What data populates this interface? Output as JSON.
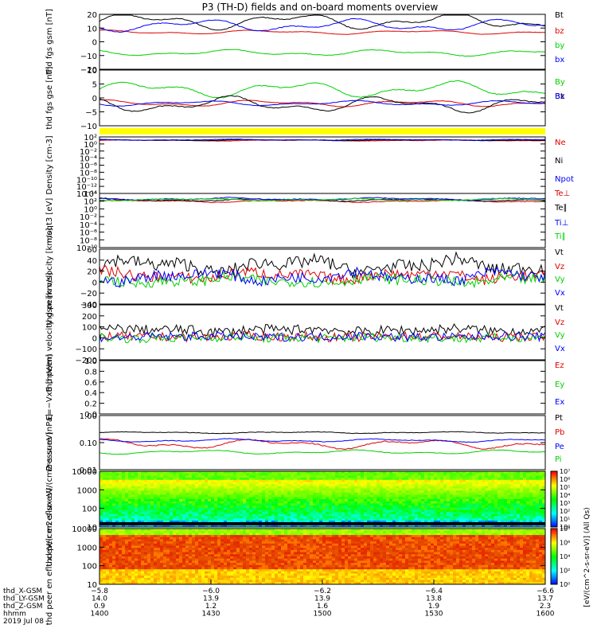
{
  "title": "P3 (TH-D) fields and on-board moments overview",
  "colors": {
    "black": "#000000",
    "red": "#e00000",
    "green": "#00d000",
    "blue": "#0000ff",
    "yellow": "#ffff00"
  },
  "chart_data": [
    {
      "id": "fgs-gsm",
      "type": "line",
      "ylabel": "thd fgs gsm [nT]",
      "ylim": [
        -20,
        20
      ],
      "yticks": [
        "20",
        "10",
        "0",
        "−10",
        "−20"
      ],
      "series": [
        {
          "name": "Bt",
          "color": "#000000",
          "level": 15,
          "amp": 4,
          "noise": 0.3
        },
        {
          "name": "bz",
          "color": "#e00000",
          "level": 7,
          "amp": 1,
          "noise": 0.1
        },
        {
          "name": "by",
          "color": "#00d000",
          "level": -8,
          "amp": 1.5,
          "noise": 0.2
        },
        {
          "name": "bx",
          "color": "#0000ff",
          "level": 12,
          "amp": 3,
          "noise": 0.3
        }
      ]
    },
    {
      "id": "fgs-gse",
      "type": "line",
      "ylabel": "thd fgs gse [nT]",
      "ylim": [
        -13,
        13
      ],
      "yticks": [
        "10",
        "5",
        "0",
        "−5",
        "−10"
      ],
      "series": [
        {
          "name": "By",
          "color": "#00d000",
          "level": 4,
          "amp": 2.5,
          "noise": 0.2
        },
        {
          "name": "Bz",
          "color": "#e00000",
          "level": -2.5,
          "amp": 1,
          "noise": 0.1
        },
        {
          "name": "Bt",
          "color": "#000000",
          "level": -3,
          "amp": 2.5,
          "noise": 0.2
        },
        {
          "name": "Bx",
          "color": "#0000ff",
          "level": -2.5,
          "amp": 0.8,
          "noise": 0.1
        }
      ]
    },
    {
      "id": "density",
      "type": "line",
      "ylabel": "Density [cm-3]",
      "log": true,
      "ylim": [
        -14,
        2
      ],
      "yticks": [
        "10²",
        "10⁰",
        "10⁻²",
        "10⁻⁴",
        "10⁻⁶",
        "10⁻⁸",
        "10⁻¹⁰",
        "10⁻¹²",
        "10⁻¹⁴"
      ],
      "series": [
        {
          "name": "Ne",
          "color": "#e00000",
          "level": 1.0,
          "amp": 0.1,
          "noise": 0.05
        },
        {
          "name": "Ni",
          "color": "#000000",
          "level": 1.1,
          "amp": 0.1,
          "noise": 0.05
        },
        {
          "name": "Npot",
          "color": "#0000ff",
          "level": 1.2,
          "amp": 0.1,
          "noise": 0.05
        }
      ]
    },
    {
      "id": "temperature",
      "type": "line",
      "ylabel": "moqt3 [eV]",
      "log": true,
      "ylim": [
        -10,
        4
      ],
      "yticks": [
        "10⁴",
        "10²",
        "10⁰",
        "10⁻²",
        "10⁻⁴",
        "10⁻⁶",
        "10⁻⁸",
        "10⁻¹⁰"
      ],
      "series": [
        {
          "name": "Te⊥",
          "color": "#e00000",
          "level": 2.0,
          "amp": 0.2,
          "noise": 0.1
        },
        {
          "name": "Te∥",
          "color": "#000000",
          "level": 2.3,
          "amp": 0.2,
          "noise": 0.1
        },
        {
          "name": "Ti⊥",
          "color": "#0000ff",
          "level": 2.6,
          "amp": 0.2,
          "noise": 0.1
        },
        {
          "name": "Ti∥",
          "color": "#00d000",
          "level": 2.4,
          "amp": 0.2,
          "noise": 0.1
        }
      ]
    },
    {
      "id": "peim-velocity",
      "type": "line",
      "ylabel": "thd peim velocity [km/s]",
      "ylim": [
        -40,
        60
      ],
      "yticks": [
        "60",
        "40",
        "20",
        "0",
        "−20",
        "−40"
      ],
      "series": [
        {
          "name": "Vt",
          "color": "#000000",
          "level": 30,
          "amp": 8,
          "noise": 12
        },
        {
          "name": "Vz",
          "color": "#e00000",
          "level": 12,
          "amp": 5,
          "noise": 10
        },
        {
          "name": "Vy",
          "color": "#00d000",
          "level": 3,
          "amp": 4,
          "noise": 10
        },
        {
          "name": "Vx",
          "color": "#0000ff",
          "level": 10,
          "amp": 6,
          "noise": 10
        }
      ]
    },
    {
      "id": "peem-velocity",
      "type": "line",
      "ylabel": "thd peem velocity gsm [km/s]",
      "ylim": [
        -200,
        300
      ],
      "yticks": [
        "300",
        "200",
        "100",
        "0",
        "−100",
        "−200"
      ],
      "series": [
        {
          "name": "Vt",
          "color": "#000000",
          "level": 70,
          "amp": 10,
          "noise": 45
        },
        {
          "name": "Vz",
          "color": "#e00000",
          "level": 10,
          "amp": 5,
          "noise": 40
        },
        {
          "name": "Vy",
          "color": "#00d000",
          "level": 0,
          "amp": 5,
          "noise": 40
        },
        {
          "name": "Vx",
          "color": "#0000ff",
          "level": 10,
          "amp": 5,
          "noise": 40
        }
      ]
    },
    {
      "id": "efield",
      "type": "line",
      "ylabel": "E=−VxB [mV/m]",
      "ylim": [
        0,
        1
      ],
      "yticks": [
        "1.0",
        "0.8",
        "0.6",
        "0.4",
        "0.2",
        "0.0"
      ],
      "series": [
        {
          "name": "Ez",
          "color": "#e00000"
        },
        {
          "name": "Ey",
          "color": "#00d000"
        },
        {
          "name": "Ex",
          "color": "#0000ff"
        }
      ]
    },
    {
      "id": "pressure",
      "type": "line",
      "ylabel": "Pressure [nPa]",
      "log": true,
      "ylim": [
        -2,
        0
      ],
      "yticks": [
        "1.00",
        "0.10",
        "0.01"
      ],
      "series": [
        {
          "name": "Pt",
          "color": "#000000",
          "level": -0.63,
          "amp": 0.02,
          "noise": 0.01
        },
        {
          "name": "Pb",
          "color": "#e00000",
          "level": -1.05,
          "amp": 0.12,
          "noise": 0.02
        },
        {
          "name": "Pe",
          "color": "#0000ff",
          "level": -0.92,
          "amp": 0.04,
          "noise": 0.01
        },
        {
          "name": "Pi",
          "color": "#00d000",
          "level": -1.35,
          "amp": 0.05,
          "noise": 0.01
        }
      ]
    },
    {
      "id": "peir",
      "type": "heatmap",
      "ylabel": "thd peir en eflux eV/(cm2-s-sr-eV)",
      "log": true,
      "ylim": [
        0.7,
        4.3
      ],
      "yticks": [
        "10000",
        "1000",
        "100",
        "10"
      ]
    },
    {
      "id": "peer",
      "type": "heatmap",
      "ylabel": "thd peer en eflux eV/(cm2-s-sr-eV)",
      "log": true,
      "ylim": [
        0.7,
        4.3
      ],
      "yticks": [
        "10000",
        "1000",
        "100",
        "10"
      ]
    }
  ],
  "colorbar": {
    "upper_ticks": [
      "10⁷",
      "10⁶",
      "10⁵",
      "10⁴",
      "10³",
      "10²",
      "10¹",
      "10⁰"
    ],
    "lower_ticks": [
      "10⁸",
      "10⁶",
      "10⁴",
      "10²",
      "10⁰"
    ],
    "label": "[eV/(cm^2-s-sr-eV)] (All Qs)"
  },
  "x_axis": {
    "rows": [
      {
        "label": "thd_X-GSM",
        "values": [
          "−5.8",
          "−6.0",
          "−6.2",
          "−6.4",
          "−6.6"
        ]
      },
      {
        "label": "thd_LY-GSM",
        "values": [
          "14.0",
          "13.9",
          "13.9",
          "13.8",
          "13.7"
        ]
      },
      {
        "label": "thd_Z-GSM",
        "values": [
          "0.9",
          "1.2",
          "1.6",
          "1.9",
          "2.3"
        ]
      },
      {
        "label": "hhmm",
        "values": [
          "1400",
          "1430",
          "1500",
          "1530",
          "1600"
        ]
      },
      {
        "label": "2019 Jul 08",
        "values": []
      }
    ]
  }
}
